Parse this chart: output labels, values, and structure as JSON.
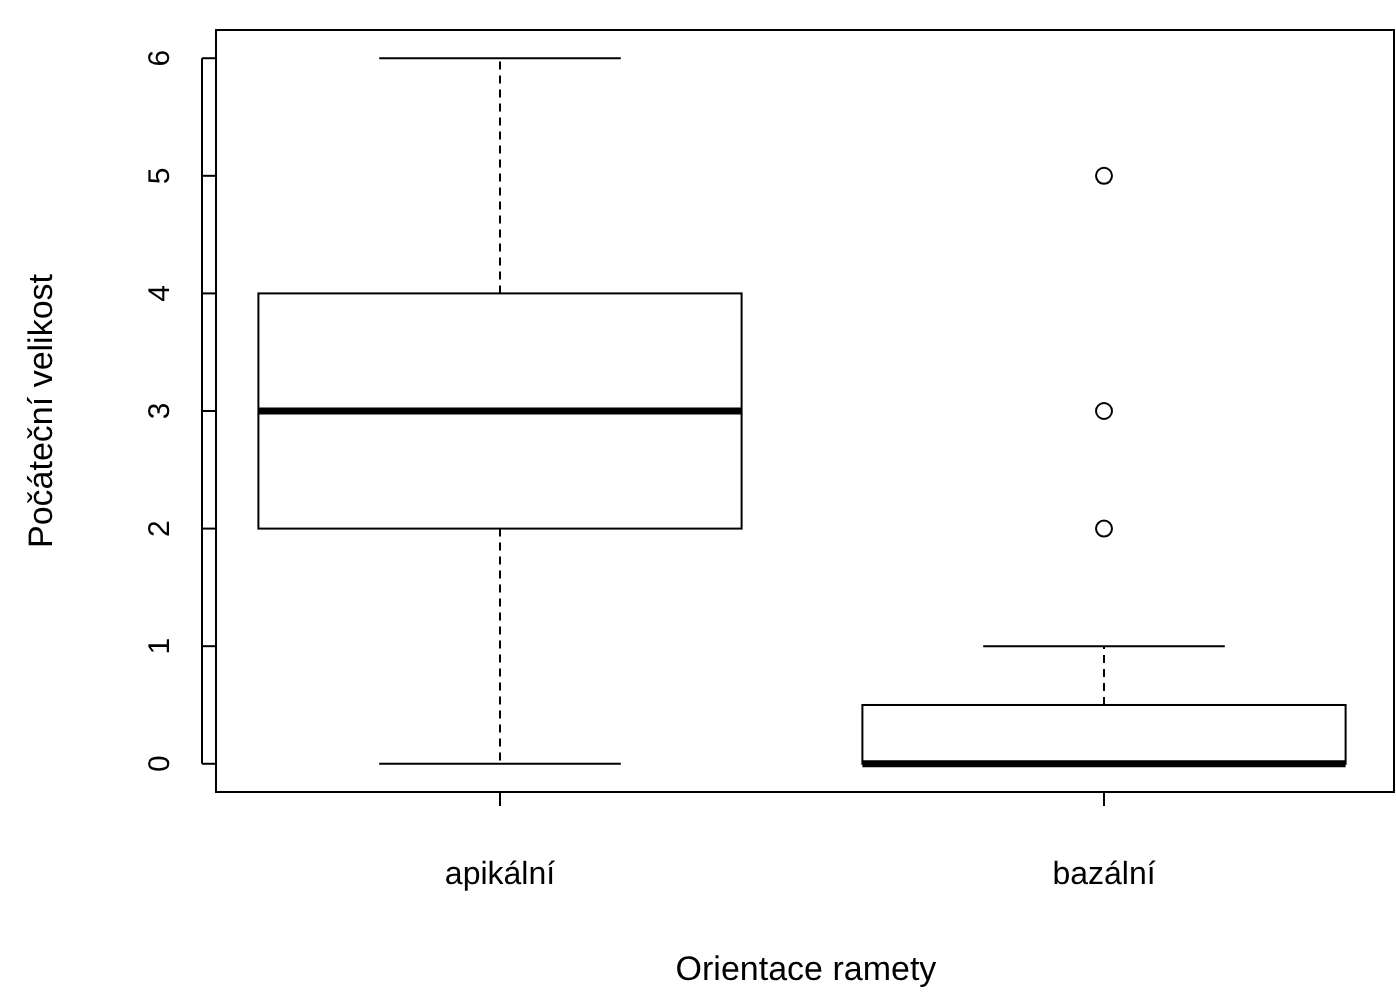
{
  "chart_data": {
    "type": "box",
    "xlabel": "Orientace ramety",
    "ylabel": "Počáteční velikost",
    "categories": [
      "apikální",
      "bazální"
    ],
    "boxes": [
      {
        "low": 0,
        "q1": 2,
        "median": 3,
        "q3": 4,
        "high": 6
      },
      {
        "low": 0,
        "q1": 0,
        "median": 0,
        "q3": 0.5,
        "high": 1,
        "outliers": [
          2,
          3,
          5
        ]
      }
    ],
    "ylim": [
      -0.24,
      6.24
    ],
    "yticks": [
      0,
      1,
      2,
      3,
      4,
      5,
      6
    ],
    "grid": false
  }
}
